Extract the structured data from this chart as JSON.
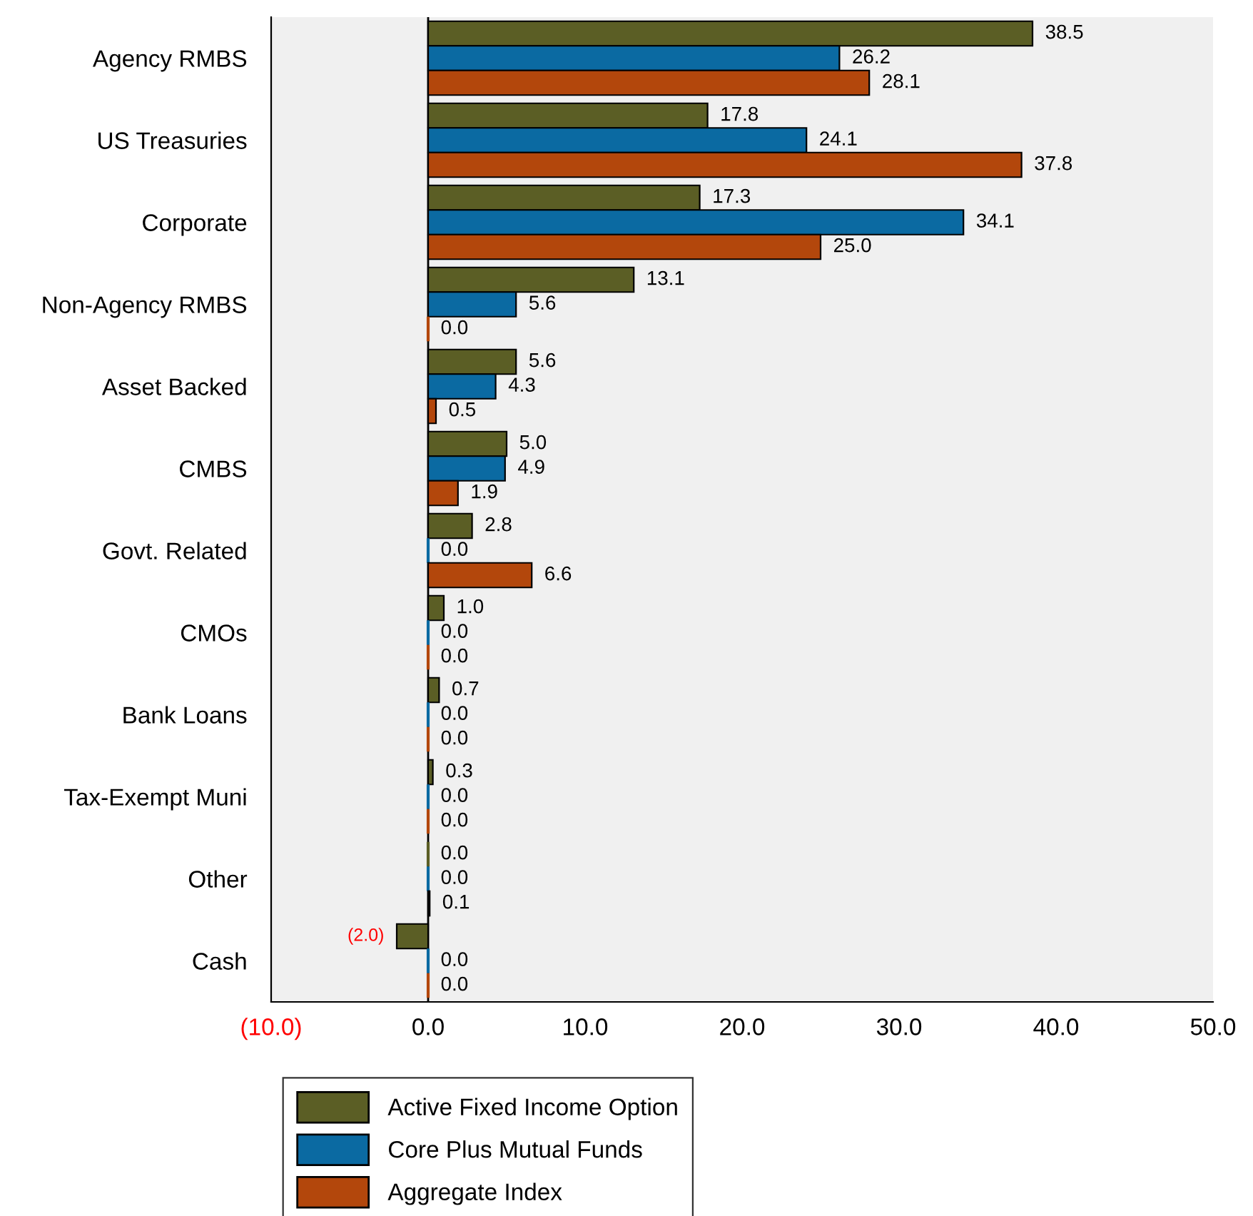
{
  "chart_data": {
    "type": "bar",
    "orientation": "horizontal",
    "categories": [
      "Agency RMBS",
      "US Treasuries",
      "Corporate",
      "Non-Agency RMBS",
      "Asset Backed",
      "CMBS",
      "Govt. Related",
      "CMOs",
      "Bank Loans",
      "Tax-Exempt Muni",
      "Other",
      "Cash"
    ],
    "series": [
      {
        "name": "Active Fixed Income Option",
        "color": "#5b5e25",
        "values": [
          38.5,
          17.8,
          17.3,
          13.1,
          5.6,
          5.0,
          2.8,
          1.0,
          0.7,
          0.3,
          0.0,
          -2.0
        ],
        "value_labels": [
          "38.5",
          "17.8",
          "17.3",
          "13.1",
          "5.6",
          "5.0",
          "2.8",
          "1.0",
          "0.7",
          "0.3",
          "0.0",
          "(2.0)"
        ]
      },
      {
        "name": "Core Plus Mutual Funds",
        "color": "#0b6aa2",
        "values": [
          26.2,
          24.1,
          34.1,
          5.6,
          4.3,
          4.9,
          0.0,
          0.0,
          0.0,
          0.0,
          0.0,
          0.0
        ],
        "value_labels": [
          "26.2",
          "24.1",
          "34.1",
          "5.6",
          "4.3",
          "4.9",
          "0.0",
          "0.0",
          "0.0",
          "0.0",
          "0.0",
          "0.0"
        ]
      },
      {
        "name": "Aggregate Index",
        "color": "#b3470c",
        "values": [
          28.1,
          37.8,
          25.0,
          0.0,
          0.5,
          1.9,
          6.6,
          0.0,
          0.0,
          0.0,
          0.1,
          0.0
        ],
        "value_labels": [
          "28.1",
          "37.8",
          "25.0",
          "0.0",
          "0.5",
          "1.9",
          "6.6",
          "0.0",
          "0.0",
          "0.0",
          "0.1",
          "0.0"
        ]
      }
    ],
    "xlim": [
      -10,
      50
    ],
    "xticks": [
      {
        "value": -10,
        "label": "(10.0)"
      },
      {
        "value": 0,
        "label": "0.0"
      },
      {
        "value": 10,
        "label": "10.0"
      },
      {
        "value": 20,
        "label": "20.0"
      },
      {
        "value": 30,
        "label": "30.0"
      },
      {
        "value": 40,
        "label": "40.0"
      },
      {
        "value": 50,
        "label": "50.0"
      }
    ],
    "ref_lines": [
      {
        "axis": "x",
        "value": 0,
        "color": "#000000",
        "line_style": "solid"
      }
    ],
    "grid": false,
    "legend": "bottom"
  }
}
